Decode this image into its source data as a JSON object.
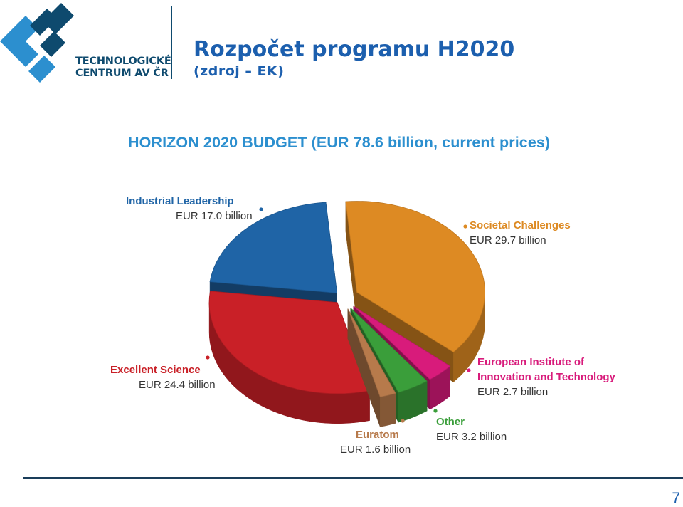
{
  "header": {
    "logo_line1": "TECHNOLOGICKÉ",
    "logo_line2": "CENTRUM AV ČR",
    "title": "Rozpočet programu H2020",
    "subtitle": "(zdroj – EK)",
    "page_number": "7"
  },
  "colors": {
    "brand_blue": "#1c5fae",
    "logo_dark": "#0e4a6e",
    "logo_light": "#2c8fcf"
  },
  "chart_data": {
    "type": "pie",
    "title": "HORIZON 2020 BUDGET (EUR 78.6 billion, current prices)",
    "unit": "EUR billion",
    "slices": [
      {
        "name": "Societal Challenges",
        "value_label": "EUR 29.7 billion",
        "value": 29.7,
        "color": "#dd8a23"
      },
      {
        "name": "European Institute of Innovation and Technology",
        "name_line1": "European Institute of",
        "name_line2": "Innovation and Technology",
        "value_label": "EUR 2.7 billion",
        "value": 2.7,
        "color": "#d81b7b"
      },
      {
        "name": "Other",
        "value_label": "EUR 3.2 billion",
        "value": 3.2,
        "color": "#3a9e3a"
      },
      {
        "name": "Euratom",
        "value_label": "EUR 1.6 billion",
        "value": 1.6,
        "color": "#b77a4b"
      },
      {
        "name": "Excellent Science",
        "value_label": "EUR 24.4 billion",
        "value": 24.4,
        "color": "#c92027"
      },
      {
        "name": "Industrial Leadership",
        "value_label": "EUR 17.0 billion",
        "value": 17.0,
        "color": "#1f64a6"
      }
    ]
  }
}
